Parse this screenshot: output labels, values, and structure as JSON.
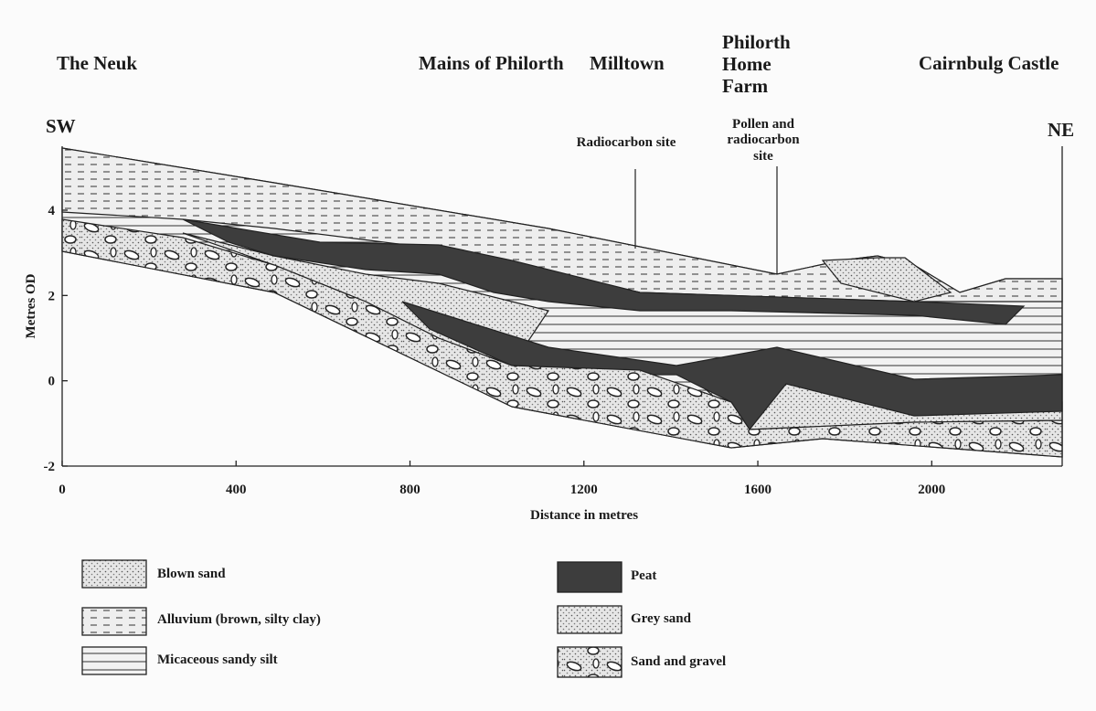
{
  "ends": {
    "left": "SW",
    "right": "NE"
  },
  "places": [
    "The Neuk",
    "Mains of Philorth",
    "Milltown",
    "Philorth Home Farm",
    "Cairnbulg Castle"
  ],
  "sites": [
    "Radiocarbon site",
    "Pollen and radiocarbon site"
  ],
  "axes": {
    "y_label": "Metres OD",
    "x_label": "Distance in metres",
    "xlim": [
      0,
      2300
    ],
    "ylim": [
      -2,
      5.5
    ],
    "xticks": [
      0,
      400,
      800,
      1200,
      1600,
      2000
    ],
    "yticks": [
      -2,
      0,
      2,
      4
    ]
  },
  "legend": [
    "Blown sand",
    "Alluvium (brown, silty clay)",
    "Micaceous sandy silt",
    "Peat",
    "Grey sand",
    "Sand and gravel"
  ]
}
